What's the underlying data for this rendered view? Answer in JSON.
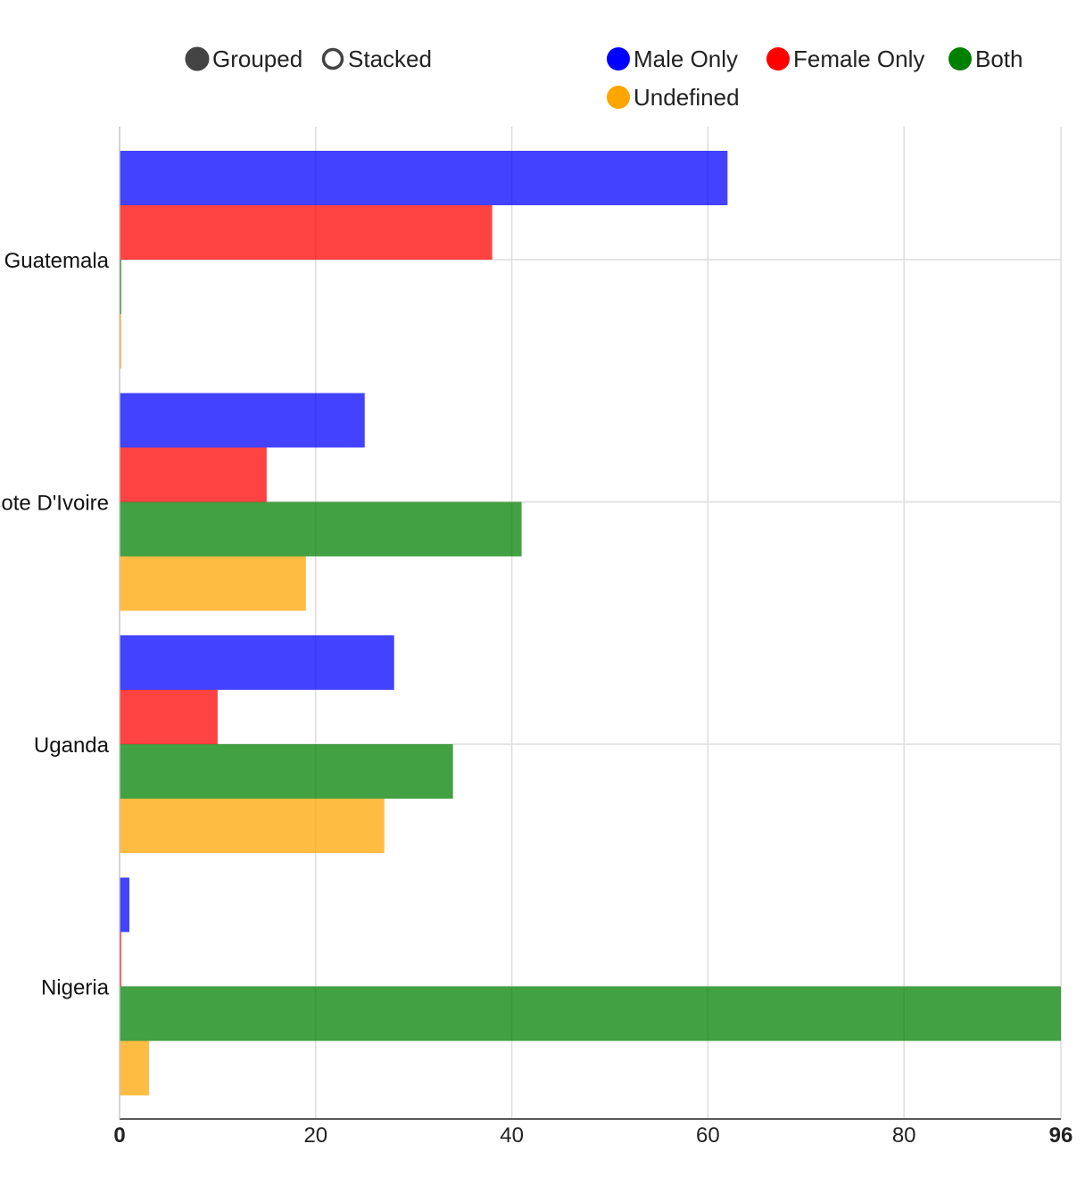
{
  "controls": {
    "grouped_label": "Grouped",
    "stacked_label": "Stacked",
    "selected": "Grouped"
  },
  "legend": {
    "items": [
      {
        "label": "Male Only",
        "color": "#0000ff"
      },
      {
        "label": "Female Only",
        "color": "#ff0000"
      },
      {
        "label": "Both",
        "color": "#008000"
      },
      {
        "label": "Undefined",
        "color": "#ffa500"
      }
    ]
  },
  "chart_data": {
    "type": "bar",
    "orientation": "horizontal",
    "mode": "grouped",
    "categories": [
      "Guatemala",
      "Cote D'Ivoire",
      "Uganda",
      "Nigeria"
    ],
    "series": [
      {
        "name": "Male Only",
        "color": "#0000ff",
        "values": [
          62,
          25,
          28,
          1
        ]
      },
      {
        "name": "Female Only",
        "color": "#ff0000",
        "values": [
          38,
          15,
          10,
          0
        ]
      },
      {
        "name": "Both",
        "color": "#008000",
        "values": [
          0,
          41,
          34,
          96
        ]
      },
      {
        "name": "Undefined",
        "color": "#ffa500",
        "values": [
          0,
          19,
          27,
          3
        ]
      }
    ],
    "xlim": [
      0,
      96
    ],
    "xticks": [
      "0",
      "20",
      "40",
      "60",
      "80",
      "96"
    ],
    "grid": true,
    "legend_position": "top"
  }
}
